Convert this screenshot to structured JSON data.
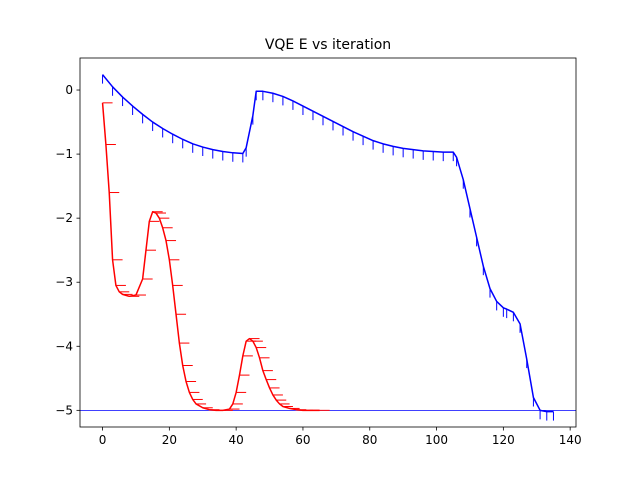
{
  "chart_data": {
    "type": "line",
    "title": "VQE E vs iteration",
    "xlabel": "",
    "ylabel": "",
    "xlim": [
      -6.75,
      141.75
    ],
    "ylim": [
      -5.26,
      0.5
    ],
    "xticks": [
      0,
      20,
      40,
      60,
      80,
      100,
      120,
      140
    ],
    "xtick_labels": [
      "0",
      "20",
      "40",
      "60",
      "80",
      "100",
      "120",
      "140"
    ],
    "yticks": [
      0,
      -1,
      -2,
      -3,
      -4,
      -5
    ],
    "ytick_labels": [
      "0",
      "−1",
      "−2",
      "−3",
      "−4",
      "−5"
    ],
    "grid": false,
    "legend": "none",
    "reference_line": {
      "y": -5.0,
      "color": "#0000ff"
    },
    "series": [
      {
        "color": "#0000ff",
        "error_bar_direction": "down",
        "error_bar_length": 0.14,
        "x": [
          0,
          3,
          6,
          9,
          12,
          15,
          18,
          21,
          24,
          27,
          30,
          33,
          36,
          39,
          42,
          43,
          45,
          46,
          48,
          51,
          54,
          57,
          60,
          63,
          66,
          69,
          72,
          75,
          78,
          81,
          84,
          87,
          90,
          93,
          96,
          99,
          102,
          105,
          106,
          108,
          110,
          112,
          114,
          116,
          118,
          120,
          121,
          123,
          125,
          127,
          129,
          131,
          133,
          135
        ],
        "y": [
          0.24,
          0.05,
          -0.11,
          -0.25,
          -0.38,
          -0.5,
          -0.6,
          -0.69,
          -0.77,
          -0.84,
          -0.89,
          -0.93,
          -0.96,
          -0.98,
          -0.99,
          -0.9,
          -0.4,
          -0.02,
          -0.02,
          -0.05,
          -0.1,
          -0.17,
          -0.25,
          -0.33,
          -0.41,
          -0.49,
          -0.57,
          -0.65,
          -0.72,
          -0.79,
          -0.84,
          -0.88,
          -0.91,
          -0.93,
          -0.95,
          -0.96,
          -0.97,
          -0.97,
          -1.05,
          -1.4,
          -1.85,
          -2.3,
          -2.75,
          -3.1,
          -3.3,
          -3.4,
          -3.42,
          -3.47,
          -3.65,
          -4.2,
          -4.8,
          -5.0,
          -5.02,
          -5.02
        ]
      },
      {
        "color": "#ff0000",
        "error_bar_direction": "right",
        "error_bar_length": 3.0,
        "x": [
          0,
          1,
          2,
          3,
          4,
          5,
          6,
          8,
          10,
          12,
          13,
          14,
          15,
          16,
          17,
          18,
          19,
          20,
          21,
          22,
          23,
          24,
          25,
          26,
          27,
          28,
          30,
          32,
          34,
          36,
          38,
          39,
          40,
          41,
          42,
          43,
          44,
          45,
          46,
          47,
          48,
          49,
          50,
          51,
          52,
          53,
          54,
          56,
          58,
          60,
          62,
          65
        ],
        "y": [
          -0.2,
          -0.85,
          -1.6,
          -2.65,
          -3.05,
          -3.15,
          -3.19,
          -3.22,
          -3.2,
          -2.95,
          -2.5,
          -2.05,
          -1.9,
          -1.92,
          -2.0,
          -2.15,
          -2.35,
          -2.65,
          -3.05,
          -3.5,
          -3.95,
          -4.3,
          -4.55,
          -4.72,
          -4.83,
          -4.9,
          -4.96,
          -4.99,
          -5.0,
          -5.0,
          -4.98,
          -4.9,
          -4.72,
          -4.45,
          -4.15,
          -3.92,
          -3.88,
          -3.92,
          -4.02,
          -4.18,
          -4.38,
          -4.52,
          -4.65,
          -4.76,
          -4.84,
          -4.9,
          -4.94,
          -4.97,
          -4.99,
          -5.0,
          -5.0,
          -5.0
        ]
      }
    ]
  }
}
